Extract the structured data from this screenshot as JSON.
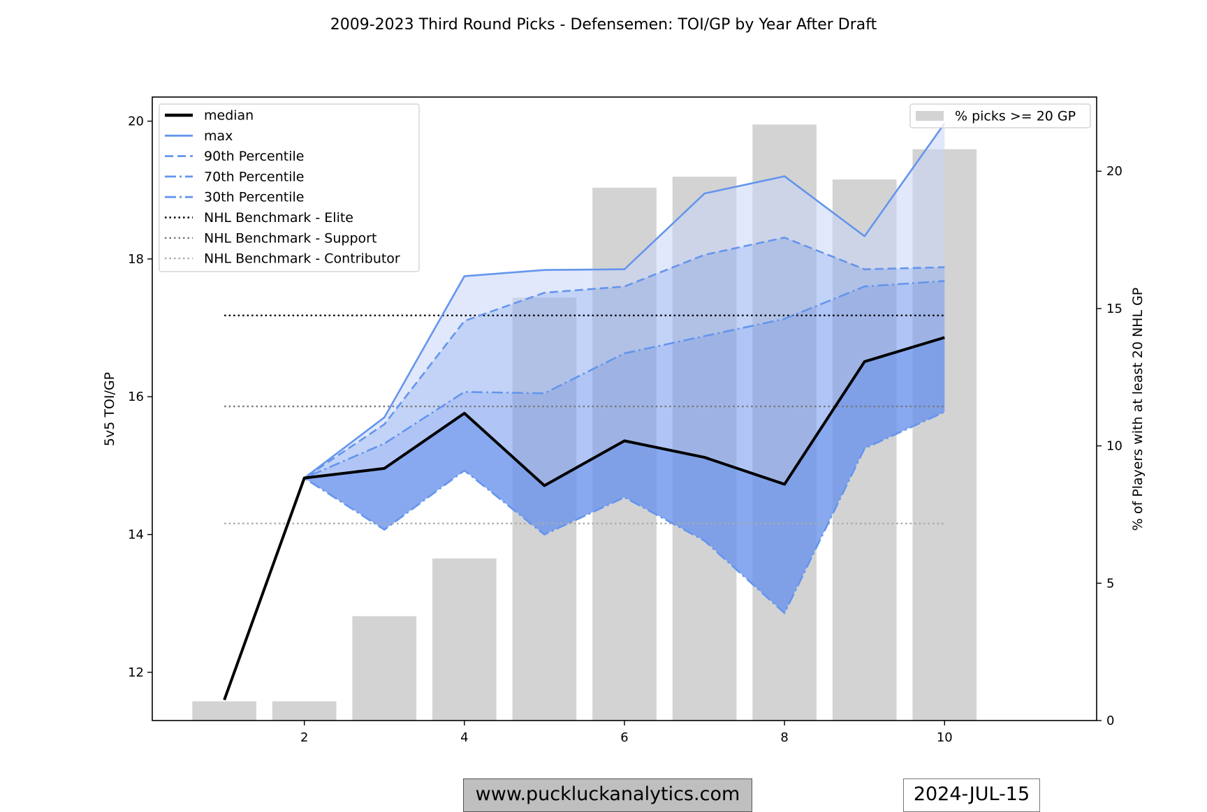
{
  "title": "2009-2023 Third Round Picks - Defensemen: TOI/GP by Year After Draft",
  "footer": {
    "website": "www.puckluckanalytics.com",
    "date": "2024-JUL-15"
  },
  "chart_data": {
    "type": "line",
    "title": "2009-2023 Third Round Picks - Defensemen: TOI/GP by Year After Draft",
    "xlabel": "",
    "ylabel": "5v5 TOI/GP",
    "y2label": "% of Players with at least 20 NHL GP",
    "x": [
      1,
      2,
      3,
      4,
      5,
      6,
      7,
      8,
      9,
      10
    ],
    "xlim": [
      0.1,
      11.9
    ],
    "ylim": [
      11.3,
      20.35
    ],
    "y2lim": [
      0,
      22.7
    ],
    "xticks": [
      2,
      4,
      6,
      8,
      10
    ],
    "yticks": [
      12,
      14,
      16,
      18,
      20
    ],
    "y2ticks": [
      0,
      5,
      10,
      15,
      20
    ],
    "grid": false,
    "legend_left": "top-left",
    "legend_right": "top-right",
    "series": [
      {
        "name": "median",
        "style": "solid",
        "color": "#000000",
        "width": 4,
        "values": [
          11.6,
          14.82,
          14.96,
          15.76,
          14.71,
          15.36,
          15.12,
          14.73,
          16.51,
          16.86
        ]
      },
      {
        "name": "max",
        "style": "solid",
        "color": "#6495ed",
        "width": 2.6,
        "values": [
          11.6,
          14.82,
          15.7,
          17.75,
          17.84,
          17.85,
          18.95,
          19.2,
          18.33,
          19.97
        ]
      },
      {
        "name": "90th Percentile",
        "style": "dashed",
        "color": "#6495ed",
        "width": 2.6,
        "values": [
          11.6,
          14.82,
          15.6,
          17.1,
          17.51,
          17.6,
          18.06,
          18.31,
          17.85,
          17.88
        ]
      },
      {
        "name": "70th Percentile",
        "style": "dashdot",
        "color": "#6495ed",
        "width": 2.6,
        "values": [
          11.6,
          14.82,
          15.32,
          16.07,
          16.05,
          16.63,
          16.88,
          17.13,
          17.6,
          17.68
        ]
      },
      {
        "name": "30th Percentile",
        "style": "dashdot",
        "color": "#6495ed",
        "width": 2.6,
        "values": [
          11.6,
          14.82,
          14.07,
          14.93,
          14.0,
          14.54,
          13.91,
          12.86,
          15.25,
          15.78
        ]
      }
    ],
    "benchmarks": [
      {
        "name": "NHL Benchmark - Elite",
        "value": 17.18,
        "color": "#000000"
      },
      {
        "name": "NHL Benchmark - Support",
        "value": 15.86,
        "color": "#777777"
      },
      {
        "name": "NHL Benchmark - Contributor",
        "value": 14.16,
        "color": "#aaaaaa"
      }
    ],
    "bars": {
      "name": "% picks >= 20 GP",
      "color": "#d3d3d3",
      "values": [
        0.7,
        0.7,
        3.8,
        5.9,
        15.4,
        19.4,
        19.8,
        21.7,
        19.7,
        20.8
      ]
    },
    "bands": [
      {
        "between": [
          "max",
          "90th Percentile"
        ],
        "color": "#c8d6f8",
        "opacity": 0.55
      },
      {
        "between": [
          "90th Percentile",
          "70th Percentile"
        ],
        "color": "#9ab6f2",
        "opacity": 0.6
      },
      {
        "between": [
          "70th Percentile",
          "median"
        ],
        "color": "#7b9ff0",
        "opacity": 0.6
      },
      {
        "between": [
          "median",
          "30th Percentile"
        ],
        "color": "#6a93ec",
        "opacity": 0.8
      }
    ]
  }
}
